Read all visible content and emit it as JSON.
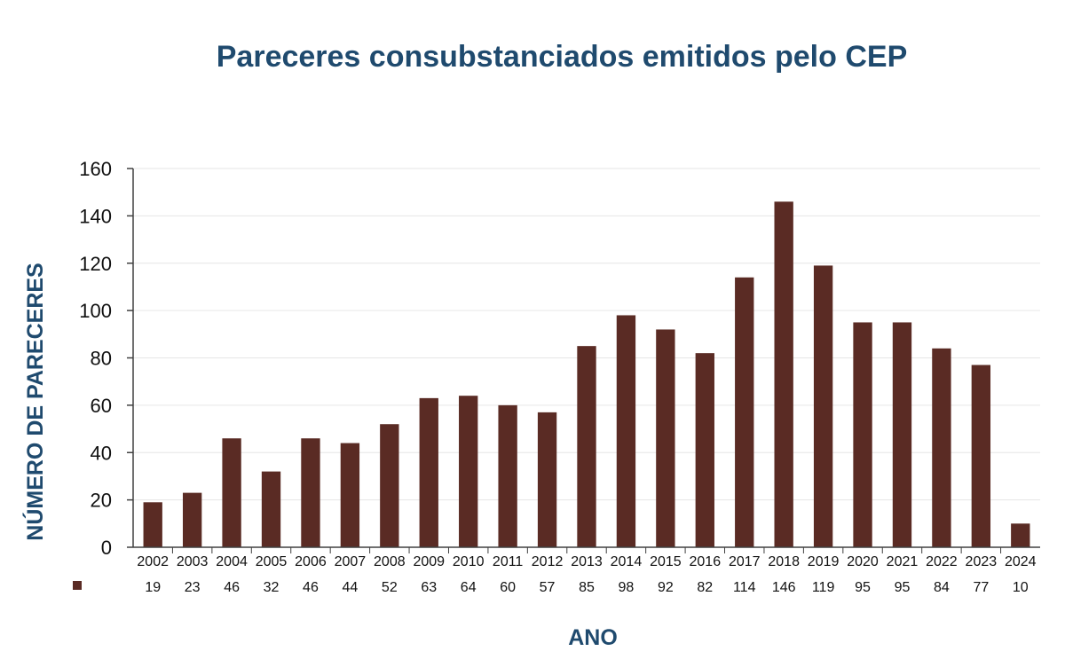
{
  "colors": {
    "bar": "#5a2b24",
    "title": "#1f4a6e",
    "axis": "#404040",
    "grid": "#e6e6e6",
    "text": "#111111"
  },
  "chart_data": {
    "type": "bar",
    "title": "Pareceres consubstanciados emitidos pelo CEP",
    "xlabel": "ANO",
    "ylabel": "NÚMERO DE PARECERES",
    "categories": [
      "2002",
      "2003",
      "2004",
      "2005",
      "2006",
      "2007",
      "2008",
      "2009",
      "2010",
      "2011",
      "2012",
      "2013",
      "2014",
      "2015",
      "2016",
      "2017",
      "2018",
      "2019",
      "2020",
      "2021",
      "2022",
      "2023",
      "2024"
    ],
    "values": [
      19,
      23,
      46,
      32,
      46,
      44,
      52,
      63,
      64,
      60,
      57,
      85,
      98,
      92,
      82,
      114,
      146,
      119,
      95,
      95,
      84,
      77,
      10
    ],
    "ylim": [
      0,
      160
    ],
    "yticks": [
      0,
      20,
      40,
      60,
      80,
      100,
      120,
      140,
      160
    ],
    "grid": true,
    "data_table": true
  }
}
